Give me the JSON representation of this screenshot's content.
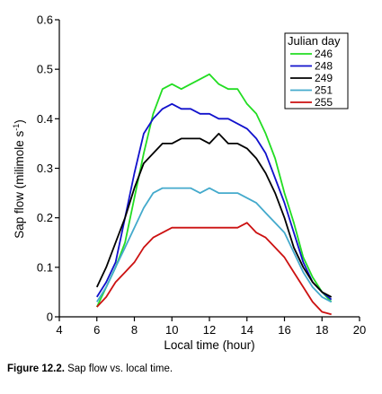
{
  "chart_data": {
    "type": "line",
    "title": "",
    "xlabel": "Local time (hour)",
    "ylabel": "Sap flow (milimole s",
    "ylabel_superscript": "-1",
    "ylabel_suffix": ")",
    "xlim": [
      4,
      20
    ],
    "ylim": [
      0,
      0.6
    ],
    "xticks": [
      4,
      6,
      8,
      10,
      12,
      14,
      16,
      18,
      20
    ],
    "yticks": [
      0,
      0.1,
      0.2,
      0.3,
      0.4,
      0.5,
      0.6
    ],
    "ytick_labels": [
      "0",
      "0.1",
      "0.2",
      "0.3",
      "0.4",
      "0.5",
      "0.6"
    ],
    "grid": false,
    "legend": {
      "title": "Julian day",
      "placement": "top-right"
    },
    "x": [
      6,
      6.5,
      7,
      7.5,
      8,
      8.5,
      9,
      9.5,
      10,
      10.5,
      11,
      11.5,
      12,
      12.5,
      13,
      13.5,
      14,
      14.5,
      15,
      15.5,
      16,
      16.5,
      17,
      17.5,
      18,
      18.5
    ],
    "series": [
      {
        "name": "246",
        "color": "#22dd22",
        "values": [
          0.02,
          0.06,
          0.1,
          0.15,
          0.24,
          0.33,
          0.41,
          0.46,
          0.47,
          0.46,
          0.47,
          0.48,
          0.49,
          0.47,
          0.46,
          0.46,
          0.43,
          0.41,
          0.37,
          0.32,
          0.25,
          0.19,
          0.12,
          0.08,
          0.05,
          0.03
        ]
      },
      {
        "name": "248",
        "color": "#1111cc",
        "values": [
          0.04,
          0.07,
          0.11,
          0.2,
          0.29,
          0.37,
          0.4,
          0.42,
          0.43,
          0.42,
          0.42,
          0.41,
          0.41,
          0.4,
          0.4,
          0.39,
          0.38,
          0.36,
          0.33,
          0.28,
          0.23,
          0.17,
          0.11,
          0.07,
          0.05,
          0.035
        ]
      },
      {
        "name": "249",
        "color": "#000000",
        "values": [
          0.06,
          0.1,
          0.15,
          0.2,
          0.26,
          0.31,
          0.33,
          0.35,
          0.35,
          0.36,
          0.36,
          0.36,
          0.35,
          0.37,
          0.35,
          0.35,
          0.34,
          0.32,
          0.29,
          0.25,
          0.2,
          0.14,
          0.1,
          0.07,
          0.05,
          0.04
        ]
      },
      {
        "name": "251",
        "color": "#44aacc",
        "values": [
          0.03,
          0.06,
          0.1,
          0.14,
          0.18,
          0.22,
          0.25,
          0.26,
          0.26,
          0.26,
          0.26,
          0.25,
          0.26,
          0.25,
          0.25,
          0.25,
          0.24,
          0.23,
          0.21,
          0.19,
          0.17,
          0.13,
          0.09,
          0.06,
          0.04,
          0.03
        ]
      },
      {
        "name": "255",
        "color": "#cc1111",
        "values": [
          0.02,
          0.04,
          0.07,
          0.09,
          0.11,
          0.14,
          0.16,
          0.17,
          0.18,
          0.18,
          0.18,
          0.18,
          0.18,
          0.18,
          0.18,
          0.18,
          0.19,
          0.17,
          0.16,
          0.14,
          0.12,
          0.09,
          0.06,
          0.03,
          0.01,
          0.005
        ]
      }
    ]
  },
  "caption": {
    "label": "Figure 12.2.",
    "text": " Sap flow vs. local time."
  }
}
